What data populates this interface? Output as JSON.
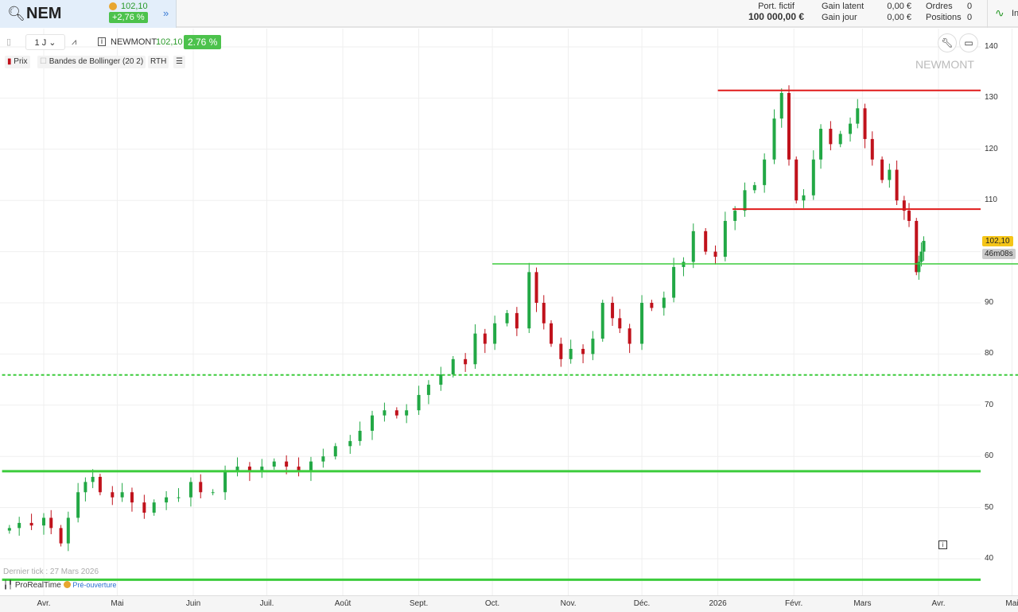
{
  "header": {
    "symbol": "NEM",
    "price": "102,10",
    "change": "+2,76 %",
    "portfolio_label": "Port. fictif",
    "portfolio_value": "100 000,00 €",
    "gain_latent_label": "Gain latent",
    "gain_latent": "0,00 €",
    "gain_jour_label": "Gain jour",
    "gain_jour": "0,00 €",
    "ordres_label": "Ordres",
    "ordres": "0",
    "positions_label": "Positions",
    "positions": "0",
    "right_cut": "In"
  },
  "toolbar": {
    "interval": "1 J",
    "instrument": "NEWMONT",
    "price": "102,10",
    "change": "2.76 %"
  },
  "legend": {
    "prix": "Prix",
    "bollinger": "Bandes de Bollinger (20 2)",
    "rth": "RTH"
  },
  "watermark": "NEWMONT",
  "footer": {
    "last_tick": "Dernier tick : 27 Mars 2026",
    "brand": "ProRealTime",
    "status": "Pré-ouverture"
  },
  "price_label": "102,10",
  "countdown": "46m08s",
  "colors": {
    "up": "#22a845",
    "down": "#c0121c",
    "resistance": "#e01b1b",
    "support": "#3ccc3c",
    "price_tag": "#f5c518"
  },
  "chart_data": {
    "type": "candlestick",
    "ylim": [
      36,
      142
    ],
    "yticks": [
      140,
      130,
      120,
      110,
      100,
      90,
      80,
      70,
      60,
      50,
      40
    ],
    "ytick_labels": [
      "140",
      "130",
      "120",
      "110",
      "",
      "90",
      "80",
      "70",
      "60",
      "50",
      "40"
    ],
    "xticks": [
      {
        "date": "2025-04-01",
        "label": "Avr."
      },
      {
        "date": "2025-05-01",
        "label": "Mai"
      },
      {
        "date": "2025-06-01",
        "label": "Juin"
      },
      {
        "date": "2025-07-01",
        "label": "Juil."
      },
      {
        "date": "2025-08-01",
        "label": "Août"
      },
      {
        "date": "2025-09-01",
        "label": "Sept."
      },
      {
        "date": "2025-10-01",
        "label": "Oct."
      },
      {
        "date": "2025-11-01",
        "label": "Nov."
      },
      {
        "date": "2025-12-01",
        "label": "Déc."
      },
      {
        "date": "2026-01-01",
        "label": "2026"
      },
      {
        "date": "2026-02-01",
        "label": "Févr."
      },
      {
        "date": "2026-03-01",
        "label": "Mars"
      },
      {
        "date": "2026-04-01",
        "label": "Avr."
      },
      {
        "date": "2026-05-01",
        "label": "Mai"
      }
    ],
    "grid": true,
    "closes": [
      [
        "2025-03-18",
        46
      ],
      [
        "2025-03-22",
        47
      ],
      [
        "2025-03-27",
        46.5
      ],
      [
        "2025-04-01",
        48
      ],
      [
        "2025-04-04",
        46
      ],
      [
        "2025-04-08",
        43
      ],
      [
        "2025-04-11",
        48
      ],
      [
        "2025-04-15",
        53
      ],
      [
        "2025-04-18",
        55
      ],
      [
        "2025-04-21",
        56
      ],
      [
        "2025-04-24",
        53
      ],
      [
        "2025-04-29",
        52
      ],
      [
        "2025-05-03",
        53
      ],
      [
        "2025-05-07",
        51
      ],
      [
        "2025-05-12",
        49
      ],
      [
        "2025-05-16",
        51
      ],
      [
        "2025-05-21",
        52
      ],
      [
        "2025-05-26",
        52
      ],
      [
        "2025-05-31",
        55
      ],
      [
        "2025-06-04",
        53
      ],
      [
        "2025-06-09",
        53
      ],
      [
        "2025-06-14",
        57
      ],
      [
        "2025-06-19",
        58
      ],
      [
        "2025-06-24",
        57
      ],
      [
        "2025-06-29",
        58
      ],
      [
        "2025-07-04",
        59
      ],
      [
        "2025-07-09",
        58
      ],
      [
        "2025-07-14",
        57
      ],
      [
        "2025-07-19",
        59
      ],
      [
        "2025-07-24",
        60
      ],
      [
        "2025-07-29",
        62
      ],
      [
        "2025-08-04",
        63
      ],
      [
        "2025-08-08",
        65
      ],
      [
        "2025-08-13",
        68
      ],
      [
        "2025-08-18",
        69
      ],
      [
        "2025-08-23",
        68
      ],
      [
        "2025-08-27",
        69
      ],
      [
        "2025-09-01",
        72
      ],
      [
        "2025-09-05",
        74
      ],
      [
        "2025-09-10",
        76
      ],
      [
        "2025-09-15",
        79
      ],
      [
        "2025-09-20",
        78
      ],
      [
        "2025-09-24",
        84
      ],
      [
        "2025-09-28",
        82
      ],
      [
        "2025-10-02",
        86
      ],
      [
        "2025-10-07",
        88
      ],
      [
        "2025-10-11",
        85
      ],
      [
        "2025-10-16",
        96
      ],
      [
        "2025-10-19",
        90
      ],
      [
        "2025-10-22",
        86
      ],
      [
        "2025-10-25",
        82
      ],
      [
        "2025-10-29",
        79
      ],
      [
        "2025-11-02",
        81
      ],
      [
        "2025-11-07",
        80
      ],
      [
        "2025-11-11",
        83
      ],
      [
        "2025-11-15",
        90
      ],
      [
        "2025-11-19",
        87
      ],
      [
        "2025-11-22",
        85
      ],
      [
        "2025-11-26",
        82
      ],
      [
        "2025-12-01",
        90
      ],
      [
        "2025-12-05",
        89
      ],
      [
        "2025-12-10",
        91
      ],
      [
        "2025-12-14",
        97
      ],
      [
        "2025-12-18",
        98
      ],
      [
        "2025-12-22",
        104
      ],
      [
        "2025-12-27",
        100
      ],
      [
        "2025-12-31",
        99
      ],
      [
        "2026-01-04",
        106
      ],
      [
        "2026-01-08",
        108
      ],
      [
        "2026-01-12",
        112
      ],
      [
        "2026-01-16",
        113
      ],
      [
        "2026-01-20",
        118
      ],
      [
        "2026-01-24",
        126
      ],
      [
        "2026-01-27",
        131
      ],
      [
        "2026-01-30",
        118
      ],
      [
        "2026-02-02",
        110
      ],
      [
        "2026-02-05",
        111
      ],
      [
        "2026-02-09",
        118
      ],
      [
        "2026-02-12",
        124
      ],
      [
        "2026-02-16",
        121
      ],
      [
        "2026-02-20",
        123
      ],
      [
        "2026-02-24",
        125
      ],
      [
        "2026-02-27",
        128
      ],
      [
        "2026-03-02",
        122
      ],
      [
        "2026-03-05",
        118
      ],
      [
        "2026-03-09",
        114
      ],
      [
        "2026-03-12",
        116
      ],
      [
        "2026-03-15",
        110
      ],
      [
        "2026-03-18",
        108
      ],
      [
        "2026-03-20",
        106
      ],
      [
        "2026-03-23",
        96
      ],
      [
        "2026-03-24",
        98
      ],
      [
        "2026-03-25",
        100
      ],
      [
        "2026-03-26",
        102.1
      ]
    ],
    "levels": [
      {
        "value": 131.5,
        "from": "2026-01-01",
        "color": "#e01b1b",
        "style": "solid"
      },
      {
        "value": 108.3,
        "from": "2026-01-07",
        "color": "#e01b1b",
        "style": "solid"
      },
      {
        "value": 97.6,
        "from": "2025-10-01",
        "color": "#3ccc3c",
        "style": "thin"
      },
      {
        "value": 75.9,
        "from": "2025-03-15",
        "color": "#3ccc3c",
        "style": "dotted"
      },
      {
        "value": 57.1,
        "from": "2025-03-15",
        "color": "#3ccc3c",
        "style": "thick"
      },
      {
        "value": 35.9,
        "from": "2025-03-15",
        "color": "#3ccc3c",
        "style": "thick"
      }
    ]
  }
}
